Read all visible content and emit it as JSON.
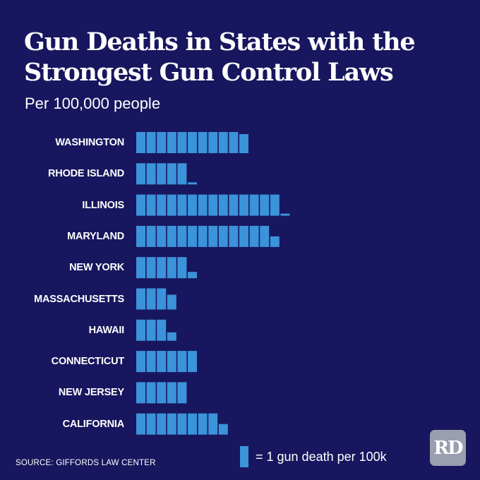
{
  "chart_data": {
    "type": "bar",
    "orientation": "horizontal",
    "style": "pictogram",
    "title": "Gun Deaths in States with the Strongest Gun Control Laws",
    "subtitle": "Per 100,000 people",
    "categories": [
      "WASHINGTON",
      "RHODE ISLAND",
      "ILLINOIS",
      "MARYLAND",
      "NEW YORK",
      "MASSACHUSETTS",
      "HAWAII",
      "CONNECTICUT",
      "NEW JERSEY",
      "CALIFORNIA"
    ],
    "values": [
      10.9,
      5.1,
      14.1,
      13.5,
      5.3,
      3.7,
      3.4,
      6,
      5,
      8.5
    ],
    "unit_legend": "= 1 gun death per 100k",
    "source": "SOURCE: GIFFORDS LAW CENTER",
    "colors": {
      "background": "#18165e",
      "bar": "#3b93da",
      "text": "#ffffff"
    },
    "grid": false
  },
  "logo": "RD"
}
